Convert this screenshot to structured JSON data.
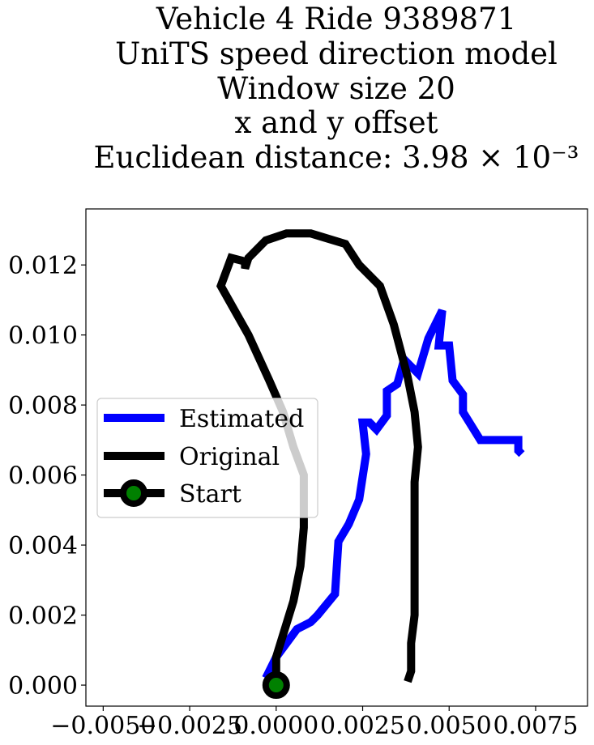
{
  "chart_data": {
    "type": "line",
    "title_lines": [
      "Vehicle 4 Ride 9389871",
      "UniTS speed direction model",
      "Window size 20",
      "x and y offset",
      "Euclidean distance: 3.98 × 10⁻³"
    ],
    "xlim": [
      -0.0055,
      0.009
    ],
    "ylim": [
      -0.0006,
      0.0136
    ],
    "x_ticks": [
      -0.005,
      -0.0025,
      0.0,
      0.0025,
      0.005,
      0.0075
    ],
    "x_tick_labels": [
      "−0.0050",
      "−0.0025",
      "0.0000",
      "0.0025",
      "0.0050",
      "0.0075"
    ],
    "y_ticks": [
      0.0,
      0.002,
      0.004,
      0.006,
      0.008,
      0.01,
      0.012
    ],
    "y_tick_labels": [
      "0.000",
      "0.002",
      "0.004",
      "0.006",
      "0.008",
      "0.010",
      "0.012"
    ],
    "legend_position": "center-left",
    "series": [
      {
        "name": "Estimated",
        "color": "#0000ff",
        "points": [
          [
            -0.0003,
            0.0002
          ],
          [
            0.0,
            0.0008
          ],
          [
            0.0006,
            0.0016
          ],
          [
            0.001,
            0.0018
          ],
          [
            0.0012,
            0.002
          ],
          [
            0.0017,
            0.0026
          ],
          [
            0.0018,
            0.0041
          ],
          [
            0.0021,
            0.0046
          ],
          [
            0.0024,
            0.0053
          ],
          [
            0.0026,
            0.0066
          ],
          [
            0.0025,
            0.0075
          ],
          [
            0.0027,
            0.0075
          ],
          [
            0.0029,
            0.0073
          ],
          [
            0.0032,
            0.0077
          ],
          [
            0.0032,
            0.0084
          ],
          [
            0.0035,
            0.0086
          ],
          [
            0.0037,
            0.0093
          ],
          [
            0.0041,
            0.0089
          ],
          [
            0.0044,
            0.0099
          ],
          [
            0.0048,
            0.0107
          ],
          [
            0.0047,
            0.0097
          ],
          [
            0.005,
            0.0097
          ],
          [
            0.0051,
            0.0087
          ],
          [
            0.0054,
            0.0083
          ],
          [
            0.0054,
            0.0078
          ],
          [
            0.0059,
            0.007
          ],
          [
            0.007,
            0.007
          ],
          [
            0.007,
            0.0067
          ],
          [
            0.0071,
            0.0066
          ]
        ]
      },
      {
        "name": "Original",
        "color": "#000000",
        "points": [
          [
            0.0,
            0.0
          ],
          [
            0.0,
            0.0008
          ],
          [
            0.0005,
            0.0024
          ],
          [
            0.0007,
            0.0034
          ],
          [
            0.0008,
            0.0045
          ],
          [
            0.0008,
            0.006
          ],
          [
            0.0005,
            0.0068
          ],
          [
            0.0002,
            0.0078
          ],
          [
            -0.0002,
            0.0087
          ],
          [
            -0.0008,
            0.01
          ],
          [
            -0.0016,
            0.0114
          ],
          [
            -0.0013,
            0.0122
          ],
          [
            -0.0009,
            0.0121
          ],
          [
            -0.0009,
            0.0119
          ],
          [
            -0.0008,
            0.0122
          ],
          [
            -0.0003,
            0.0127
          ],
          [
            0.0003,
            0.0129
          ],
          [
            0.001,
            0.0129
          ],
          [
            0.002,
            0.0126
          ],
          [
            0.0024,
            0.012
          ],
          [
            0.003,
            0.0114
          ],
          [
            0.0034,
            0.0103
          ],
          [
            0.0038,
            0.0088
          ],
          [
            0.004,
            0.0078
          ],
          [
            0.0041,
            0.0068
          ],
          [
            0.004,
            0.0058
          ],
          [
            0.004,
            0.0037
          ],
          [
            0.004,
            0.003
          ],
          [
            0.004,
            0.002
          ],
          [
            0.0039,
            0.0012
          ],
          [
            0.0039,
            0.0004
          ],
          [
            0.0038,
            0.0001
          ]
        ]
      }
    ],
    "start": {
      "name": "Start",
      "x": 0.0,
      "y": 0.0,
      "marker_color": "#008000",
      "edge_color": "#000000"
    },
    "legend": [
      "Estimated",
      "Original",
      "Start"
    ]
  }
}
